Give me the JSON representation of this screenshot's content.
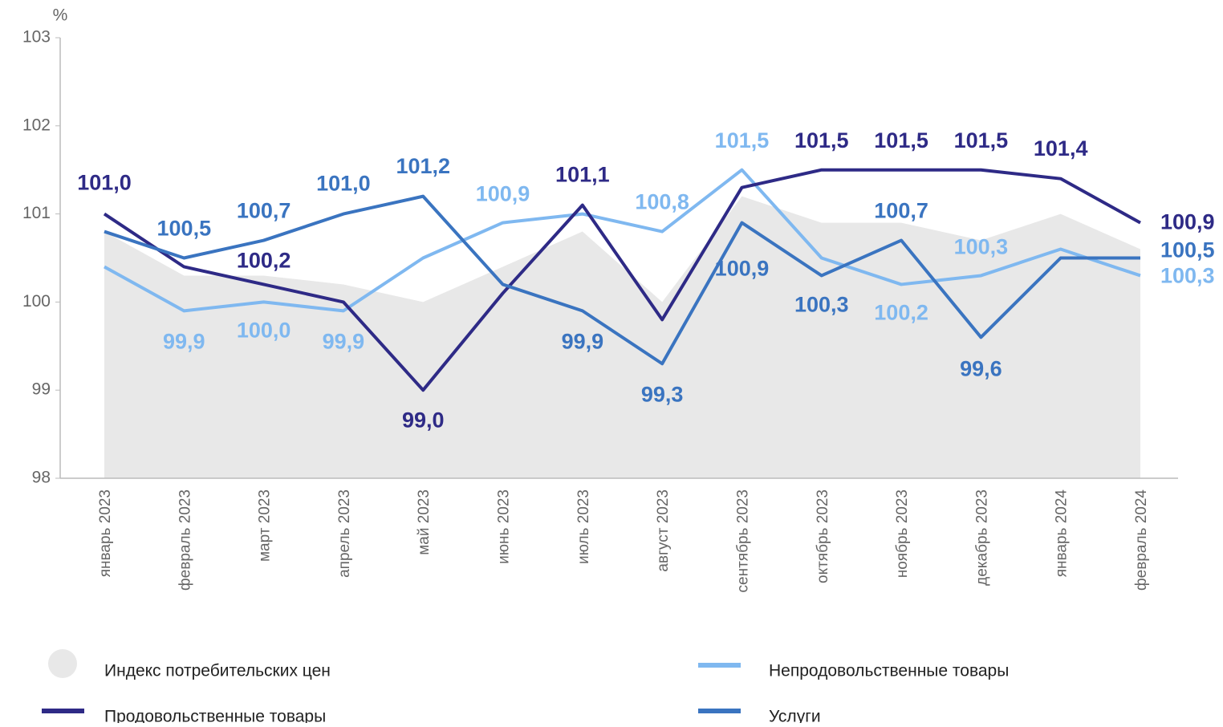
{
  "chart_data": {
    "type": "line",
    "y_unit": "%",
    "categories": [
      "январь 2023",
      "февраль 2023",
      "март 2023",
      "апрель 2023",
      "май 2023",
      "июнь 2023",
      "июль 2023",
      "август 2023",
      "сентябрь 2023",
      "октябрь 2023",
      "ноябрь 2023",
      "декабрь 2023",
      "январь 2024",
      "февраль 2024"
    ],
    "ylim": [
      98,
      103
    ],
    "yticks": [
      98,
      99,
      100,
      101,
      102,
      103
    ],
    "series": [
      {
        "name": "Индекс потребительских цен",
        "color": "#e8e8e8",
        "style": "area",
        "values": [
          100.8,
          100.3,
          100.3,
          100.2,
          100.0,
          100.4,
          100.8,
          100.0,
          101.2,
          100.9,
          100.9,
          100.7,
          101.0,
          100.6
        ]
      },
      {
        "name": "Непродовольственные товары",
        "color": "#7fb8f0",
        "style": "line",
        "values": [
          100.4,
          99.9,
          100.0,
          99.9,
          100.5,
          100.9,
          101.0,
          100.8,
          101.5,
          100.5,
          100.2,
          100.3,
          100.6,
          100.3
        ],
        "value_labels": [
          null,
          "99,9",
          "100,0",
          "99,9",
          null,
          "100,9",
          null,
          "100,8",
          "101,5",
          null,
          "100,2",
          "100,3",
          null,
          "100,3"
        ]
      },
      {
        "name": "Продовольственные товары",
        "color": "#2e2a86",
        "style": "line",
        "values": [
          101.0,
          100.4,
          100.2,
          100.0,
          99.0,
          100.1,
          101.1,
          99.8,
          101.3,
          101.5,
          101.5,
          101.5,
          101.4,
          100.9
        ],
        "value_labels": [
          "101,0",
          null,
          "100,2",
          null,
          "99,0",
          null,
          "101,1",
          null,
          null,
          "101,5",
          "101,5",
          "101,5",
          "101,4",
          "100,9"
        ]
      },
      {
        "name": "Услуги",
        "color": "#3a74c0",
        "style": "line",
        "values": [
          100.8,
          100.5,
          100.7,
          101.0,
          101.2,
          100.2,
          99.9,
          99.3,
          100.9,
          100.3,
          100.7,
          99.6,
          100.5,
          100.5
        ],
        "value_labels": [
          null,
          "100,5",
          "100,7",
          "101,0",
          "101,2",
          null,
          "99,9",
          "99,3",
          "100,9",
          "100,3",
          "100,7",
          "99,6",
          null,
          "100,5"
        ]
      }
    ]
  }
}
